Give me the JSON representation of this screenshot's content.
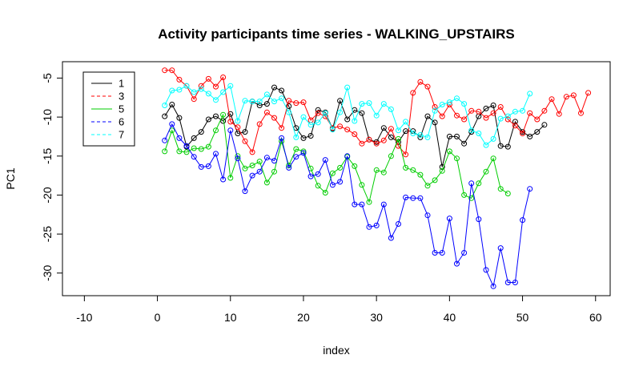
{
  "chart_data": {
    "type": "line",
    "title": "Activity participants time series -  WALKING_UPSTAIRS",
    "xlabel": "index",
    "ylabel": "PC1",
    "xlim": [
      -13,
      62
    ],
    "ylim": [
      -32.9,
      -2.9
    ],
    "xticks": [
      -10,
      0,
      10,
      20,
      30,
      40,
      50,
      60
    ],
    "yticks": [
      -30,
      -25,
      -20,
      -15,
      -10,
      -5
    ],
    "grid": false,
    "legend_position": "top-left",
    "markers": "open-circle",
    "series": [
      {
        "name": "1",
        "color": "#000000",
        "dash": "solid",
        "values": [
          -9.9,
          -8.4,
          -10.1,
          -13.8,
          -12.7,
          -11.9,
          -10.3,
          -9.9,
          -10.5,
          -9.6,
          -12.1,
          -11.9,
          -8.0,
          -8.5,
          -8.3,
          -6.2,
          -6.6,
          -8.6,
          -11.4,
          -12.7,
          -12.4,
          -9.1,
          -9.4,
          -11.5,
          -7.9,
          -10.3,
          -9.1,
          -9.5,
          -12.9,
          -13.2,
          -11.4,
          -12.6,
          -13.2,
          -11.8,
          -11.8,
          -12.6,
          -9.9,
          -10.7,
          -16.4,
          -12.5,
          -12.5,
          -13.4,
          -11.9,
          -9.9,
          -8.9,
          -8.5,
          -13.7,
          -13.8,
          -10.6,
          -11.9,
          -12.5,
          -11.9,
          -11.0
        ]
      },
      {
        "name": "3",
        "color": "#ff0000",
        "dash": "dashed",
        "values": [
          -4.0,
          -4.0,
          -5.2,
          -6.0,
          -7.7,
          -6.0,
          -5.1,
          -6.1,
          -4.9,
          -10.6,
          -11.3,
          -13.1,
          -14.5,
          -10.9,
          -9.4,
          -10.1,
          -11.4,
          -7.9,
          -8.2,
          -8.1,
          -10.4,
          -9.5,
          -9.9,
          -11.4,
          -11.2,
          -11.6,
          -12.2,
          -13.4,
          -12.9,
          -13.4,
          -13.0,
          -11.5,
          -13.7,
          -14.8,
          -6.9,
          -5.5,
          -6.1,
          -8.7,
          -9.9,
          -8.4,
          -9.8,
          -10.3,
          -9.2,
          -9.3,
          -10.1,
          -9.5,
          -8.7,
          -10.3,
          -11.1,
          -12.1,
          -9.5,
          -10.3,
          -9.2,
          -7.7,
          -9.6,
          -7.4,
          -7.2,
          -9.5,
          -6.9
        ]
      },
      {
        "name": "5",
        "color": "#00cd00",
        "dash": "solid",
        "values": [
          -14.4,
          -11.7,
          -14.4,
          -14.5,
          -14.0,
          -14.1,
          -13.8,
          -11.7,
          -9.7,
          -17.8,
          -15.0,
          -16.6,
          -16.2,
          -15.7,
          -18.4,
          -17.0,
          -13.1,
          -16.2,
          -14.1,
          -14.4,
          -16.6,
          -18.8,
          -19.7,
          -17.2,
          -16.5,
          -15.1,
          -16.3,
          -18.7,
          -20.9,
          -16.8,
          -17.1,
          -15.0,
          -12.8,
          -16.5,
          -16.8,
          -17.4,
          -18.8,
          -18.1,
          -16.9,
          -14.4,
          -15.3,
          -20.0,
          -20.4,
          -18.5,
          -17.0,
          -15.3,
          -19.2,
          -19.8
        ]
      },
      {
        "name": "6",
        "color": "#0000ff",
        "dash": "dashed",
        "values": [
          -13.0,
          -10.9,
          -12.7,
          -13.7,
          -15.1,
          -16.4,
          -16.3,
          -14.7,
          -18.0,
          -11.7,
          -15.3,
          -19.5,
          -17.5,
          -17.0,
          -15.2,
          -15.6,
          -12.7,
          -16.5,
          -15.1,
          -14.6,
          -17.6,
          -17.3,
          -15.5,
          -18.7,
          -18.3,
          -15.0,
          -21.2,
          -21.2,
          -24.1,
          -23.9,
          -21.2,
          -25.5,
          -23.7,
          -20.3,
          -20.4,
          -20.4,
          -22.6,
          -27.4,
          -27.4,
          -23.0,
          -28.8,
          -27.4,
          -18.5,
          -23.1,
          -29.6,
          -31.7,
          -26.8,
          -31.2,
          -31.2,
          -23.2,
          -19.2
        ]
      },
      {
        "name": "7",
        "color": "#00ffff",
        "dash": "dashed",
        "values": [
          -8.5,
          -6.6,
          -6.5,
          -6.0,
          -6.8,
          -6.4,
          -7.0,
          -7.8,
          -6.8,
          -6.0,
          -10.5,
          -7.9,
          -8.0,
          -8.0,
          -7.1,
          -8.0,
          -7.6,
          -9.4,
          -12.6,
          -10.0,
          -11.0,
          -10.7,
          -9.5,
          -11.6,
          -9.4,
          -6.2,
          -10.5,
          -8.3,
          -8.2,
          -9.8,
          -8.3,
          -9.0,
          -11.7,
          -10.6,
          -12.1,
          -12.3,
          -12.6,
          -9.2,
          -8.4,
          -8.1,
          -7.6,
          -8.3,
          -11.7,
          -12.1,
          -13.6,
          -12.8,
          -10.2,
          -9.9,
          -9.3,
          -9.2,
          -7.0
        ]
      }
    ]
  }
}
